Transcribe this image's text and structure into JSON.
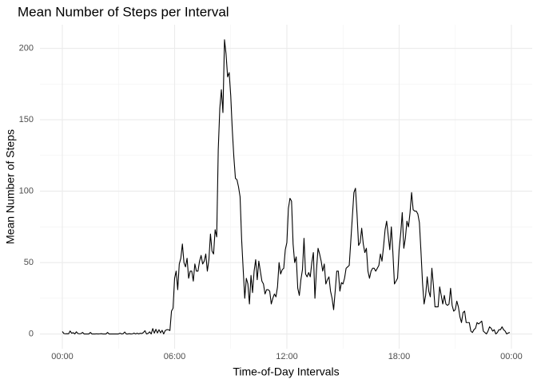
{
  "chart_data": {
    "type": "line",
    "title": "Mean Number of Steps per Interval",
    "x_label": "Time-of-Day Intervals",
    "y_label": "Mean Number of Steps",
    "color": "#000000",
    "grid": true,
    "xlim": [
      -71.75,
      1506.75
    ],
    "ylim": [
      -10.3,
      216.5
    ],
    "xticks": [
      {
        "value": 0,
        "label": "00:00"
      },
      {
        "value": 360,
        "label": "06:00"
      },
      {
        "value": 720,
        "label": "12:00"
      },
      {
        "value": 1080,
        "label": "18:00"
      },
      {
        "value": 1440,
        "label": "00:00"
      }
    ],
    "yticks": [
      0,
      50,
      100,
      150,
      200
    ],
    "x": [
      0,
      5,
      10,
      15,
      20,
      25,
      30,
      35,
      40,
      45,
      50,
      55,
      60,
      65,
      70,
      75,
      80,
      85,
      90,
      95,
      100,
      105,
      110,
      115,
      120,
      125,
      130,
      135,
      140,
      145,
      150,
      155,
      160,
      165,
      170,
      175,
      180,
      185,
      190,
      195,
      200,
      205,
      210,
      215,
      220,
      225,
      230,
      235,
      240,
      245,
      250,
      255,
      260,
      265,
      270,
      275,
      280,
      285,
      290,
      295,
      300,
      305,
      310,
      315,
      320,
      325,
      330,
      335,
      340,
      345,
      350,
      355,
      360,
      365,
      370,
      375,
      380,
      385,
      390,
      395,
      400,
      405,
      410,
      415,
      420,
      425,
      430,
      435,
      440,
      445,
      450,
      455,
      460,
      465,
      470,
      475,
      480,
      485,
      490,
      495,
      500,
      505,
      510,
      515,
      520,
      525,
      530,
      535,
      540,
      545,
      550,
      555,
      560,
      565,
      570,
      575,
      580,
      585,
      590,
      595,
      600,
      605,
      610,
      615,
      620,
      625,
      630,
      635,
      640,
      645,
      650,
      655,
      660,
      665,
      670,
      675,
      680,
      685,
      690,
      695,
      700,
      705,
      710,
      715,
      720,
      725,
      730,
      735,
      740,
      745,
      750,
      755,
      760,
      765,
      770,
      775,
      780,
      785,
      790,
      795,
      800,
      805,
      810,
      815,
      820,
      825,
      830,
      835,
      840,
      845,
      850,
      855,
      860,
      865,
      870,
      875,
      880,
      885,
      890,
      895,
      900,
      905,
      910,
      915,
      920,
      925,
      930,
      935,
      940,
      945,
      950,
      955,
      960,
      965,
      970,
      975,
      980,
      985,
      990,
      995,
      1000,
      1005,
      1010,
      1015,
      1020,
      1025,
      1030,
      1035,
      1040,
      1045,
      1050,
      1055,
      1060,
      1065,
      1070,
      1075,
      1080,
      1085,
      1090,
      1095,
      1100,
      1105,
      1110,
      1115,
      1120,
      1125,
      1130,
      1135,
      1140,
      1145,
      1150,
      1155,
      1160,
      1165,
      1170,
      1175,
      1180,
      1185,
      1190,
      1195,
      1200,
      1205,
      1210,
      1215,
      1220,
      1225,
      1230,
      1235,
      1240,
      1245,
      1250,
      1255,
      1260,
      1265,
      1270,
      1275,
      1280,
      1285,
      1290,
      1295,
      1300,
      1305,
      1310,
      1315,
      1320,
      1325,
      1330,
      1335,
      1340,
      1345,
      1350,
      1355,
      1360,
      1365,
      1370,
      1375,
      1380,
      1385,
      1390,
      1395,
      1400,
      1405,
      1410,
      1415,
      1420,
      1425,
      1430,
      1435
    ],
    "values": [
      1.7,
      0.3,
      0.1,
      0.2,
      0.1,
      2.1,
      0.5,
      0.9,
      0,
      1.5,
      0.3,
      0.1,
      0.3,
      1.1,
      0,
      0,
      0,
      0,
      1.1,
      0,
      0,
      0,
      0.1,
      0,
      0.1,
      0.2,
      0,
      0,
      0,
      1.1,
      0,
      0,
      0,
      0,
      0,
      0,
      0,
      0.5,
      0,
      0.2,
      1.4,
      0,
      0,
      0.2,
      0,
      0.1,
      0.6,
      0,
      0.5,
      0,
      0.5,
      0.3,
      1,
      2.3,
      0,
      0.4,
      1.5,
      0,
      3.8,
      0.6,
      3.3,
      0.7,
      3,
      0.8,
      2.6,
      0,
      2.4,
      3,
      3,
      2.4,
      16,
      18,
      39,
      44,
      31,
      49,
      53,
      63,
      50,
      47,
      53,
      39,
      44,
      44,
      37,
      49,
      44,
      44,
      51,
      55,
      49,
      51,
      56,
      44,
      52,
      70,
      58,
      56,
      73,
      68,
      129,
      158,
      171,
      155,
      206,
      196,
      180,
      183,
      167,
      143,
      124,
      109,
      108,
      103,
      96,
      66,
      45,
      25,
      39,
      35,
      21,
      41,
      29,
      44,
      52,
      38,
      51,
      44,
      37,
      35,
      28,
      31,
      31,
      30,
      21,
      25,
      28,
      26,
      33,
      50,
      42,
      45,
      46,
      59,
      64,
      88,
      95,
      93,
      63,
      50,
      54,
      32,
      27,
      38,
      45,
      67,
      42,
      40,
      43,
      40,
      50,
      57,
      25,
      45,
      60,
      56,
      51,
      44,
      49,
      35,
      38,
      40,
      30,
      25,
      17,
      30,
      44,
      44,
      30,
      36,
      35,
      39,
      46,
      47,
      48,
      65,
      82,
      99,
      102,
      84,
      62,
      64,
      74,
      63,
      57,
      60,
      44,
      39,
      44,
      46,
      46,
      44,
      46,
      48,
      56,
      51,
      61,
      73,
      79,
      69,
      59,
      75,
      57,
      35,
      37,
      39,
      59,
      70,
      85,
      60,
      67,
      79,
      75,
      85,
      99,
      87,
      86,
      86,
      84,
      78,
      58,
      36,
      21,
      27,
      40,
      30,
      26,
      46,
      34,
      19,
      19,
      19,
      33,
      27,
      21,
      27,
      21,
      20,
      21,
      32,
      20,
      16,
      17,
      23,
      19,
      12,
      8,
      15,
      16,
      8,
      8,
      8,
      2,
      1,
      3,
      4,
      8,
      7,
      8,
      9,
      2,
      1,
      0,
      2,
      5,
      4,
      2,
      3,
      0,
      1,
      3,
      3,
      5,
      3,
      2,
      0,
      0.7,
      1.1
    ]
  }
}
